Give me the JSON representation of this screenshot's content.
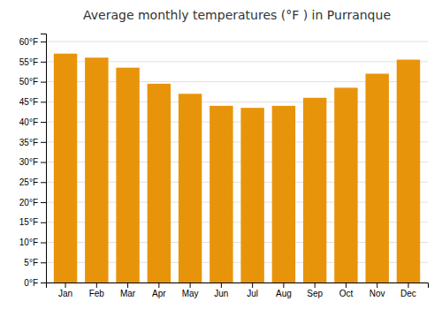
{
  "chart_data": {
    "type": "bar",
    "title": "Average monthly temperatures (°F ) in Purranque",
    "categories": [
      "Jan",
      "Feb",
      "Mar",
      "Apr",
      "May",
      "Jun",
      "Jul",
      "Aug",
      "Sep",
      "Oct",
      "Nov",
      "Dec"
    ],
    "values": [
      57,
      56,
      53.5,
      49.5,
      47,
      44,
      43.5,
      44,
      46,
      48.5,
      52,
      55.5
    ],
    "color": "#E8940A",
    "ylim": [
      0,
      62
    ],
    "yticks": [
      {
        "value": 0,
        "label": "0°F"
      },
      {
        "value": 5,
        "label": "5°F"
      },
      {
        "value": 10,
        "label": "10°F"
      },
      {
        "value": 15,
        "label": "15°F"
      },
      {
        "value": 20,
        "label": "20°F"
      },
      {
        "value": 25,
        "label": "25°F"
      },
      {
        "value": 30,
        "label": "30°F"
      },
      {
        "value": 35,
        "label": "35°F"
      },
      {
        "value": 40,
        "label": "40°F"
      },
      {
        "value": 45,
        "label": "45°F"
      },
      {
        "value": 50,
        "label": "50°F"
      },
      {
        "value": 55,
        "label": "55°F"
      },
      {
        "value": 60,
        "label": "60°F"
      }
    ],
    "grid": true
  }
}
